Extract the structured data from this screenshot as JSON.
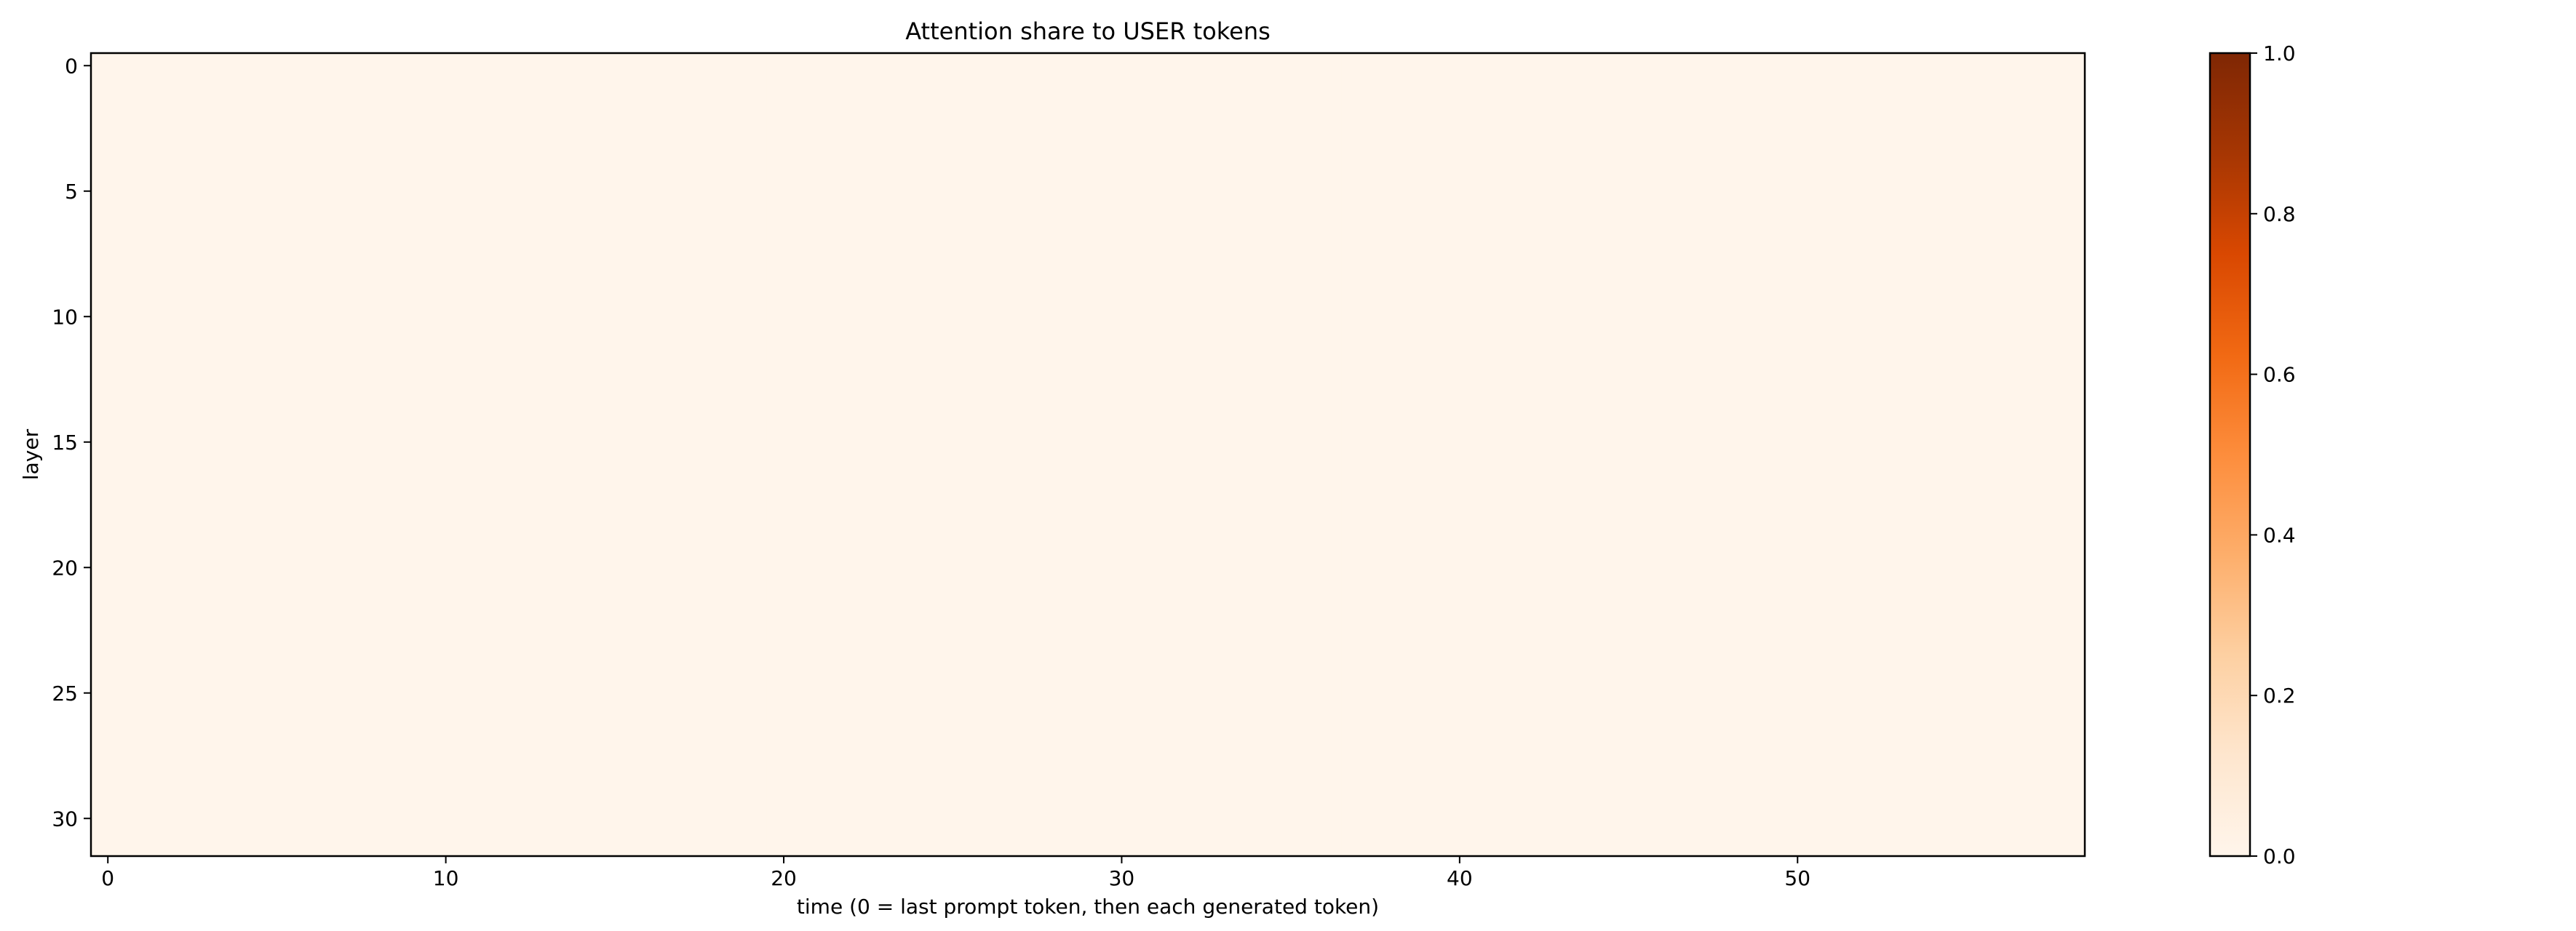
{
  "chart_data": {
    "type": "heatmap",
    "title": "Attention share to USER tokens",
    "xlabel": "time (0 = last prompt token, then each generated token)",
    "ylabel": "layer",
    "x_ticks": [
      0,
      10,
      20,
      30,
      40,
      50
    ],
    "y_ticks": [
      0,
      5,
      10,
      15,
      20,
      25,
      30
    ],
    "n_cols": 59,
    "n_rows": 32,
    "value": 0.0,
    "colormap": "Oranges",
    "colorbar": {
      "range": [
        0.0,
        1.0
      ],
      "ticks": [
        "0.0",
        "0.2",
        "0.4",
        "0.6",
        "0.8",
        "1.0"
      ]
    },
    "colors": {
      "low": "#fff5eb",
      "c1": "#fee6ce",
      "c2": "#fdd0a2",
      "c3": "#fdae6b",
      "c4": "#fd8d3c",
      "c5": "#f16913",
      "c6": "#d94801",
      "c7": "#a63603",
      "high": "#7f2704"
    }
  }
}
